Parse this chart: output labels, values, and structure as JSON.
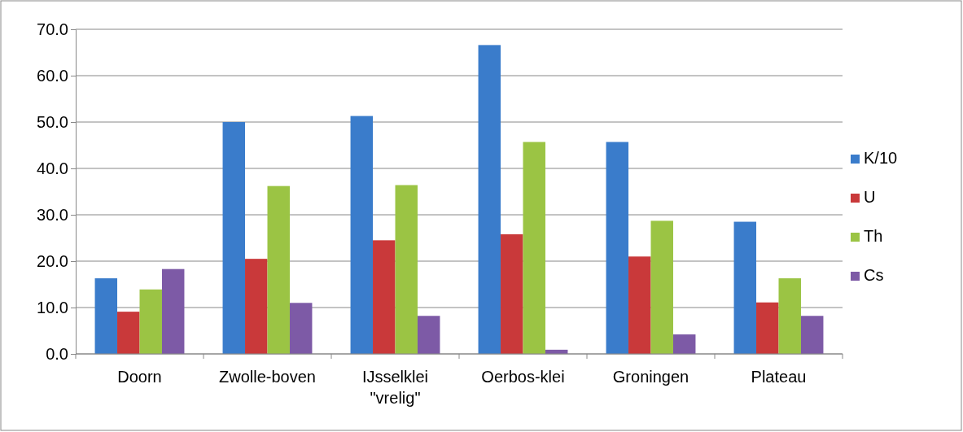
{
  "chart_data": {
    "type": "bar",
    "categories": [
      "Doorn",
      "Zwolle-boven",
      "IJsselklei\n\"vrelig\"",
      "Oerbos-klei",
      "Groningen",
      "Plateau"
    ],
    "series": [
      {
        "name": "K/10",
        "color": "#3a7ccb",
        "values": [
          16.3,
          50.0,
          51.3,
          66.6,
          45.7,
          28.5
        ]
      },
      {
        "name": "U",
        "color": "#c9393a",
        "values": [
          9.1,
          20.5,
          24.5,
          25.8,
          21.0,
          11.1
        ]
      },
      {
        "name": "Th",
        "color": "#9bc444",
        "values": [
          13.9,
          36.2,
          36.4,
          45.7,
          28.7,
          16.3
        ]
      },
      {
        "name": "Cs",
        "color": "#7d5aa6",
        "values": [
          18.3,
          11.0,
          8.2,
          0.9,
          4.2,
          8.2
        ]
      }
    ],
    "ylim": [
      0,
      70
    ],
    "yticks": [
      {
        "value": 0,
        "label": "0.0"
      },
      {
        "value": 10,
        "label": "10.0"
      },
      {
        "value": 20,
        "label": "20.0"
      },
      {
        "value": 30,
        "label": "30.0"
      },
      {
        "value": 40,
        "label": "40.0"
      },
      {
        "value": 50,
        "label": "50.0"
      },
      {
        "value": 60,
        "label": "60.0"
      },
      {
        "value": 70,
        "label": "70.0"
      }
    ],
    "grid": "y",
    "legend": "right"
  }
}
